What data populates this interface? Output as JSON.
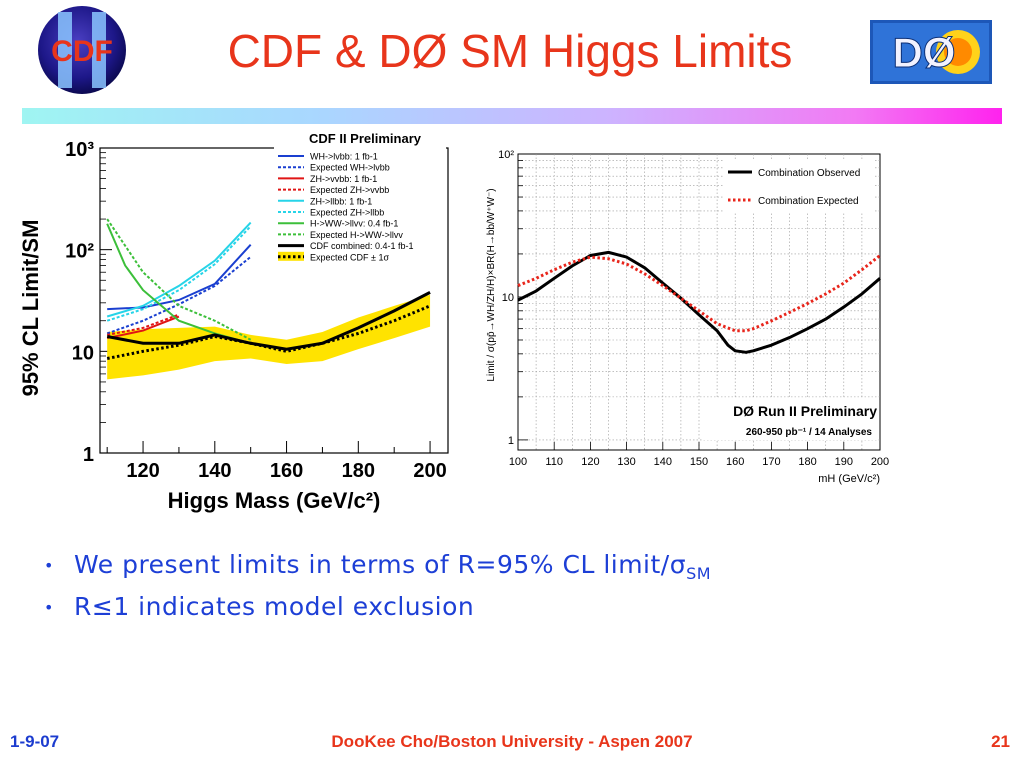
{
  "slide": {
    "title": "CDF & DØ SM Higgs Limits",
    "bullets": [
      {
        "text": "We present limits in terms of R=95% CL limit/σ",
        "sub": "SM"
      },
      {
        "text": "R≤1 indicates model exclusion",
        "sub": ""
      }
    ],
    "footer": {
      "date": "1-9-07",
      "author": "DooKee Cho/Boston University - Aspen 2007",
      "page": "21"
    },
    "logos": {
      "left_text": "CDF",
      "right_text": "DØ"
    },
    "accent_color": "#e8351b",
    "text_color": "#1d3fd6"
  },
  "chart_data": [
    {
      "type": "line",
      "title": "CDF II Preliminary",
      "xlabel": "Higgs Mass (GeV/c²)",
      "ylabel": "95% CL Limit/SM",
      "xlim": [
        108,
        205
      ],
      "ylim": [
        1,
        1000
      ],
      "yscale": "log",
      "xticks": [
        120,
        140,
        160,
        180,
        200
      ],
      "xtick_labels": [
        "120",
        "140",
        "160",
        "180",
        "200"
      ],
      "yticks": [
        1,
        10,
        100,
        1000
      ],
      "ytick_labels": [
        "1",
        "10",
        "10²",
        "10³"
      ],
      "legend_position": "top-right",
      "band": {
        "name": "Expected CDF ± 1σ",
        "x": [
          110,
          120,
          130,
          140,
          150,
          160,
          170,
          180,
          190,
          200
        ],
        "low": [
          5.3,
          5.8,
          6.6,
          8.0,
          8.5,
          7.5,
          8.0,
          10.5,
          13.5,
          17.5
        ],
        "high": [
          15.5,
          16.5,
          17.0,
          17.5,
          14.5,
          13.0,
          15.5,
          21.5,
          28.0,
          36.0
        ],
        "color": "#ffe300"
      },
      "series": [
        {
          "name": "WH->lvbb: 1 fb-1",
          "style": "solid",
          "color": "#1a3fd0",
          "x": [
            110,
            120,
            130,
            140,
            150
          ],
          "y": [
            26,
            27,
            32,
            46,
            112
          ]
        },
        {
          "name": "Expected WH->lvbb",
          "style": "dotted",
          "color": "#1a3fd0",
          "x": [
            110,
            120,
            130,
            140,
            150
          ],
          "y": [
            15,
            20,
            29,
            44,
            85
          ]
        },
        {
          "name": "ZH->vvbb: 1 fb-1",
          "style": "solid",
          "color": "#e01515",
          "x": [
            110,
            120,
            130
          ],
          "y": [
            13.5,
            16,
            22
          ]
        },
        {
          "name": "Expected ZH->vvbb",
          "style": "dotted",
          "color": "#e01515",
          "x": [
            110,
            120,
            130
          ],
          "y": [
            14.5,
            17,
            23
          ]
        },
        {
          "name": "ZH->llbb: 1 fb-1",
          "style": "solid",
          "color": "#26d4e8",
          "x": [
            110,
            120,
            130,
            140,
            150
          ],
          "y": [
            22,
            28,
            44,
            78,
            185
          ]
        },
        {
          "name": "Expected ZH->llbb",
          "style": "dotted",
          "color": "#26d4e8",
          "x": [
            110,
            120,
            130,
            140,
            150
          ],
          "y": [
            20,
            26,
            40,
            72,
            170
          ]
        },
        {
          "name": "H->WW->llvv: 0.4 fb-1",
          "style": "solid",
          "color": "#3cbf3a",
          "x": [
            110,
            115,
            120,
            130,
            140,
            150
          ],
          "y": [
            180,
            70,
            40,
            20,
            15,
            12
          ]
        },
        {
          "name": "Expected H->WW->llvv",
          "style": "dotted",
          "color": "#3cbf3a",
          "x": [
            110,
            120,
            130,
            140,
            150
          ],
          "y": [
            200,
            60,
            28,
            20,
            13
          ]
        },
        {
          "name": "CDF combined: 0.4-1 fb-1",
          "style": "solid",
          "color": "#000000",
          "x": [
            110,
            120,
            130,
            140,
            150,
            160,
            170,
            180,
            190,
            200
          ],
          "y": [
            14,
            12,
            12,
            14.5,
            12,
            10.5,
            12,
            17,
            25,
            38
          ]
        },
        {
          "name": "Expected CDF ± 1σ",
          "style": "dotted",
          "color": "#000000",
          "x": [
            110,
            120,
            130,
            140,
            150,
            160,
            170,
            180,
            190,
            200
          ],
          "y": [
            8.5,
            10,
            11.5,
            14,
            12,
            10,
            12,
            15,
            20,
            28
          ]
        }
      ]
    },
    {
      "type": "line",
      "title": "",
      "xlabel": "mH (GeV/c²)",
      "ylabel": "Limit / σ(pp̄→WH/ZH/H)×BR(H→bb/W⁺W⁻)",
      "xlim": [
        100,
        200
      ],
      "ylim": [
        0.85,
        100
      ],
      "yscale": "log",
      "xticks": [
        100,
        110,
        120,
        130,
        140,
        150,
        160,
        170,
        180,
        190,
        200
      ],
      "xtick_labels": [
        "100",
        "110",
        "120",
        "130",
        "140",
        "150",
        "160",
        "170",
        "180",
        "190",
        "200"
      ],
      "yticks": [
        1,
        10,
        100
      ],
      "ytick_labels": [
        "1",
        "10",
        "10²"
      ],
      "grid": true,
      "legend_position": "top-right",
      "annotation": [
        "DØ Run II Preliminary",
        "260-950 pb⁻¹ / 14 Analyses"
      ],
      "series": [
        {
          "name": "Combination Observed",
          "style": "solid",
          "color": "#000000",
          "x": [
            100,
            105,
            110,
            115,
            120,
            125,
            130,
            135,
            140,
            145,
            150,
            155,
            158,
            160,
            163,
            165,
            170,
            175,
            180,
            185,
            190,
            195,
            200
          ],
          "y": [
            9.5,
            11,
            13.5,
            16.5,
            19.5,
            20.5,
            19,
            16,
            12.5,
            9.8,
            7.5,
            5.8,
            4.6,
            4.2,
            4.1,
            4.2,
            4.6,
            5.2,
            6.0,
            7.0,
            8.5,
            10.5,
            13.5
          ]
        },
        {
          "name": "Combination Expected",
          "style": "dotted",
          "color": "#e8251b",
          "x": [
            100,
            105,
            110,
            115,
            120,
            125,
            130,
            135,
            140,
            145,
            150,
            155,
            160,
            163,
            165,
            170,
            175,
            180,
            185,
            190,
            195,
            200
          ],
          "y": [
            12,
            13.5,
            15.5,
            17.5,
            19,
            18.5,
            17,
            14.5,
            12,
            9.8,
            8.0,
            6.5,
            5.8,
            5.8,
            6.0,
            6.8,
            7.8,
            9.0,
            10.5,
            12.5,
            15.5,
            19.5
          ]
        }
      ]
    }
  ]
}
